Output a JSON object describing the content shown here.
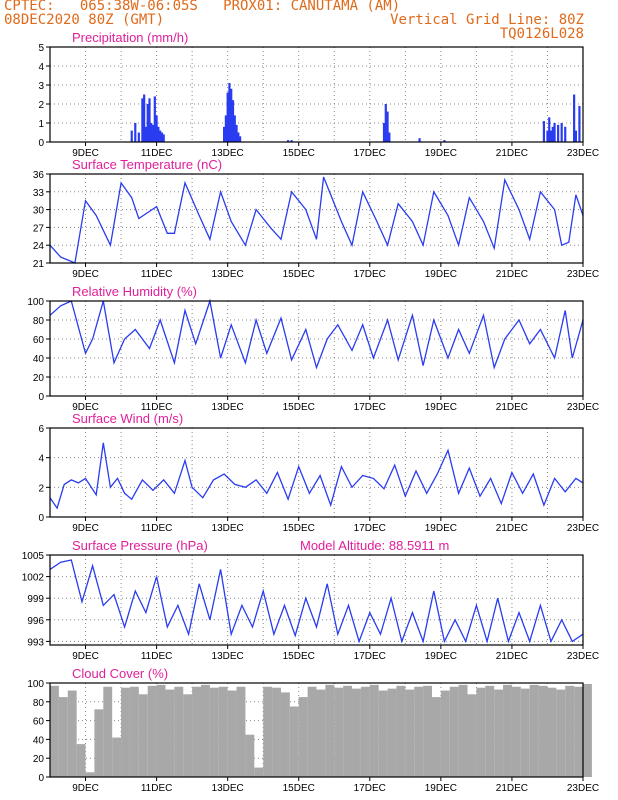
{
  "header": {
    "line1": "CPTEC:   065:38W-06:05S   PROX01: CANUTAMA (AM)",
    "line2": "08DEC2020 80Z (GMT)",
    "grid_note": "Vertical Grid Line: 80Z",
    "code": "TQ0126L028"
  },
  "colors": {
    "header": "#e06a1a",
    "title": "#e0209a",
    "line": "#2a3cf0",
    "cloud": "#a8a8a8"
  },
  "chart_data": [
    {
      "type": "bar",
      "id": "precip",
      "title": "Precipitation (mm/h)",
      "ylim": [
        0,
        5
      ],
      "yticks": [
        0,
        1,
        2,
        3,
        4,
        5
      ],
      "xticks": [
        "9DEC",
        "11DEC",
        "13DEC",
        "15DEC",
        "17DEC",
        "19DEC",
        "21DEC",
        "23DEC"
      ],
      "x": [
        2.3,
        2.4,
        2.5,
        2.6,
        2.65,
        2.7,
        2.75,
        2.8,
        2.85,
        2.9,
        2.95,
        3.0,
        3.05,
        3.1,
        3.15,
        3.2,
        4.9,
        4.95,
        5.0,
        5.05,
        5.1,
        5.15,
        5.2,
        5.25,
        5.3,
        5.35,
        6.7,
        6.8,
        9.4,
        9.45,
        9.5,
        9.55,
        10.4,
        11.1,
        13.9,
        14.0,
        14.05,
        14.1,
        14.15,
        14.2,
        14.3,
        14.4,
        14.5,
        14.75,
        14.8,
        14.9
      ],
      "values": [
        0.6,
        1.0,
        0.5,
        2.3,
        2.5,
        0.8,
        2.0,
        2.3,
        1.0,
        0.9,
        2.4,
        1.4,
        0.8,
        0.6,
        0.5,
        0.4,
        0.8,
        1.4,
        2.6,
        3.1,
        2.8,
        2.2,
        1.4,
        0.9,
        0.5,
        0.3,
        0.1,
        0.1,
        1.0,
        2.0,
        1.6,
        0.5,
        0.2,
        0.1,
        1.1,
        0.6,
        1.3,
        0.6,
        0.8,
        1.0,
        0.9,
        1.0,
        0.8,
        2.5,
        0.6,
        1.9
      ]
    },
    {
      "type": "line",
      "id": "temp",
      "title": "Surface Temperature (nC)",
      "ylim": [
        21,
        36
      ],
      "yticks": [
        21,
        24,
        27,
        30,
        33,
        36
      ],
      "xticks": [
        "9DEC",
        "11DEC",
        "13DEC",
        "15DEC",
        "17DEC",
        "19DEC",
        "21DEC",
        "23DEC"
      ],
      "x": [
        0,
        0.3,
        0.5,
        0.7,
        1.0,
        1.3,
        1.7,
        2.0,
        2.3,
        2.5,
        3.0,
        3.3,
        3.5,
        3.8,
        4.2,
        4.5,
        4.8,
        5.1,
        5.5,
        5.8,
        6.2,
        6.5,
        6.8,
        7.2,
        7.5,
        7.7,
        8.2,
        8.5,
        8.8,
        9.2,
        9.5,
        9.8,
        10.2,
        10.5,
        10.8,
        11.2,
        11.5,
        11.8,
        12.2,
        12.5,
        12.8,
        13.2,
        13.5,
        13.8,
        14.2,
        14.4,
        14.6,
        14.8,
        15.0
      ],
      "values": [
        24,
        22,
        21.5,
        21,
        31.5,
        29,
        24,
        34.5,
        32,
        28.5,
        30.5,
        26,
        26,
        34.5,
        29,
        25,
        33,
        28,
        24,
        30,
        27,
        25,
        33,
        30,
        25,
        35.5,
        28,
        24,
        33,
        28,
        24,
        31,
        28,
        24,
        33,
        29,
        24,
        32,
        28,
        23.5,
        35,
        30,
        25,
        33,
        30,
        24,
        24.5,
        32.5,
        29
      ]
    },
    {
      "type": "line",
      "id": "rh",
      "title": "Relative Humidity (%)",
      "ylim": [
        0,
        100
      ],
      "yticks": [
        0,
        20,
        40,
        60,
        80,
        100
      ],
      "xticks": [
        "9DEC",
        "11DEC",
        "13DEC",
        "15DEC",
        "17DEC",
        "19DEC",
        "21DEC",
        "23DEC"
      ],
      "x": [
        0,
        0.3,
        0.6,
        1.0,
        1.2,
        1.5,
        1.8,
        2.1,
        2.4,
        2.8,
        3.1,
        3.5,
        3.8,
        4.1,
        4.5,
        4.8,
        5.1,
        5.5,
        5.8,
        6.1,
        6.5,
        6.8,
        7.2,
        7.5,
        7.8,
        8.1,
        8.5,
        8.8,
        9.1,
        9.5,
        9.8,
        10.2,
        10.5,
        10.8,
        11.2,
        11.5,
        11.8,
        12.2,
        12.5,
        12.8,
        13.2,
        13.5,
        13.8,
        14.2,
        14.5,
        14.7,
        15.0
      ],
      "values": [
        85,
        95,
        100,
        45,
        60,
        100,
        35,
        60,
        70,
        50,
        80,
        35,
        90,
        55,
        100,
        40,
        75,
        35,
        80,
        45,
        82,
        38,
        70,
        30,
        60,
        75,
        48,
        75,
        40,
        80,
        38,
        85,
        32,
        80,
        40,
        70,
        45,
        85,
        30,
        60,
        80,
        55,
        70,
        40,
        90,
        40,
        80
      ]
    },
    {
      "type": "line",
      "id": "wind",
      "title": "Surface Wind (m/s)",
      "ylim": [
        0,
        6
      ],
      "yticks": [
        0,
        2,
        4,
        6
      ],
      "xticks": [
        "9DEC",
        "11DEC",
        "13DEC",
        "15DEC",
        "17DEC",
        "19DEC",
        "21DEC",
        "23DEC"
      ],
      "x": [
        0,
        0.2,
        0.4,
        0.6,
        0.8,
        1.0,
        1.3,
        1.5,
        1.7,
        1.9,
        2.1,
        2.3,
        2.6,
        2.9,
        3.2,
        3.5,
        3.8,
        4.0,
        4.3,
        4.6,
        4.9,
        5.2,
        5.5,
        5.8,
        6.1,
        6.4,
        6.7,
        7.0,
        7.3,
        7.6,
        7.9,
        8.2,
        8.5,
        8.8,
        9.1,
        9.4,
        9.7,
        10.0,
        10.3,
        10.6,
        10.9,
        11.2,
        11.5,
        11.8,
        12.1,
        12.4,
        12.7,
        13.0,
        13.3,
        13.6,
        13.9,
        14.2,
        14.5,
        14.8,
        15.0
      ],
      "values": [
        1.3,
        0.6,
        2.2,
        2.5,
        2.3,
        2.6,
        1.5,
        5.0,
        2.0,
        2.6,
        1.6,
        1.2,
        2.5,
        1.8,
        2.5,
        1.6,
        3.8,
        2.0,
        1.3,
        2.5,
        2.9,
        2.2,
        2.0,
        2.5,
        1.6,
        3.0,
        1.2,
        3.4,
        1.6,
        2.8,
        0.8,
        3.4,
        2.0,
        2.8,
        2.6,
        1.9,
        3.5,
        1.4,
        3.1,
        1.6,
        2.9,
        4.5,
        1.6,
        3.3,
        1.4,
        2.6,
        0.9,
        3.0,
        1.6,
        2.9,
        0.8,
        2.6,
        1.7,
        2.6,
        2.3
      ]
    },
    {
      "type": "line",
      "id": "pres",
      "title": "Surface Pressure (hPa)",
      "annotation": "Model Altitude: 88.5911 m",
      "ylim": [
        992.5,
        1005
      ],
      "yticks": [
        993,
        996,
        999,
        1002,
        1005
      ],
      "xticks": [
        "9DEC",
        "11DEC",
        "13DEC",
        "15DEC",
        "17DEC",
        "19DEC",
        "21DEC",
        "23DEC"
      ],
      "x": [
        0,
        0.3,
        0.6,
        0.9,
        1.2,
        1.5,
        1.8,
        2.1,
        2.4,
        2.7,
        3.0,
        3.3,
        3.6,
        3.9,
        4.2,
        4.5,
        4.8,
        5.1,
        5.4,
        5.7,
        6.0,
        6.3,
        6.6,
        6.9,
        7.2,
        7.5,
        7.8,
        8.1,
        8.4,
        8.7,
        9.0,
        9.3,
        9.6,
        9.9,
        10.2,
        10.5,
        10.8,
        11.1,
        11.4,
        11.7,
        12.0,
        12.3,
        12.6,
        12.9,
        13.2,
        13.5,
        13.8,
        14.1,
        14.4,
        14.7,
        15.0
      ],
      "values": [
        1003,
        1004,
        1004.3,
        998.5,
        1003.5,
        998,
        999.5,
        995,
        1000,
        997,
        1002,
        995,
        998,
        994,
        1001,
        996,
        1003,
        994,
        998,
        995,
        1000,
        994,
        998,
        993.8,
        999,
        995,
        1001,
        994,
        998,
        993,
        997,
        994,
        999,
        993,
        997,
        993,
        1000,
        993,
        996,
        993,
        998,
        993,
        999,
        993,
        997,
        993,
        998,
        993,
        996,
        993,
        994
      ]
    },
    {
      "type": "bar",
      "id": "cloud",
      "title": "Cloud Cover (%)",
      "ylim": [
        0,
        100
      ],
      "yticks": [
        0,
        20,
        40,
        60,
        80,
        100
      ],
      "xticks": [
        "9DEC",
        "11DEC",
        "13DEC",
        "15DEC",
        "17DEC",
        "19DEC",
        "21DEC",
        "23DEC"
      ],
      "x": [
        0,
        0.25,
        0.5,
        0.75,
        1.0,
        1.25,
        1.5,
        1.75,
        2.0,
        2.25,
        2.5,
        2.75,
        3.0,
        3.25,
        3.5,
        3.75,
        4.0,
        4.25,
        4.5,
        4.75,
        5.0,
        5.25,
        5.5,
        5.75,
        6.0,
        6.25,
        6.5,
        6.75,
        7.0,
        7.25,
        7.5,
        7.75,
        8.0,
        8.25,
        8.5,
        8.75,
        9.0,
        9.25,
        9.5,
        9.75,
        10.0,
        10.25,
        10.5,
        10.75,
        11.0,
        11.25,
        11.5,
        11.75,
        12.0,
        12.25,
        12.5,
        12.75,
        13.0,
        13.25,
        13.5,
        13.75,
        14.0,
        14.25,
        14.5,
        14.75,
        15.0
      ],
      "values": [
        97,
        85,
        92,
        35,
        5,
        72,
        96,
        42,
        95,
        96,
        88,
        97,
        98,
        93,
        96,
        88,
        96,
        98,
        95,
        96,
        92,
        96,
        45,
        10,
        96,
        95,
        90,
        75,
        85,
        96,
        93,
        98,
        95,
        97,
        94,
        96,
        98,
        92,
        94,
        97,
        93,
        96,
        97,
        85,
        92,
        96,
        98,
        88,
        95,
        97,
        93,
        98,
        96,
        94,
        98,
        97,
        95,
        93,
        97,
        96,
        99
      ]
    }
  ]
}
